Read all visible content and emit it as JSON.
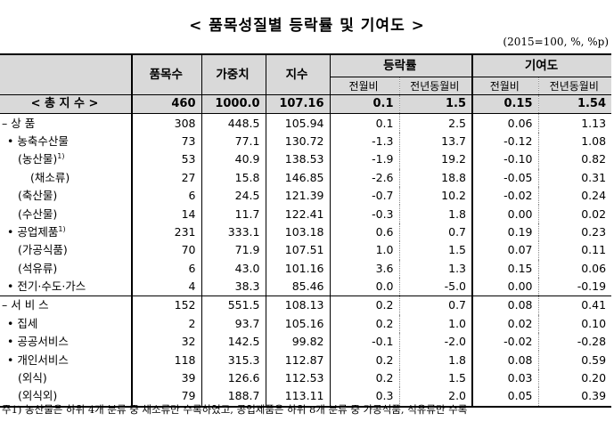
{
  "title": "< 품목성질별 등락률 및 기여도 >",
  "unit": "(2015=100, %, %p)",
  "header": {
    "items": "품목수",
    "weight": "가중치",
    "index": "지수",
    "change": "등락률",
    "contribution": "기여도",
    "mom": "전월비",
    "yoy": "전년동월비"
  },
  "rows": [
    {
      "label": "< 총 지 수 >",
      "sup": "",
      "items": "460",
      "weight": "1000.0",
      "index": "107.16",
      "ch_mom": "0.1",
      "ch_yoy": "1.5",
      "ct_mom": "0.15",
      "ct_yoy": "1.54"
    },
    {
      "label": "– 상    품",
      "sup": "",
      "items": "308",
      "weight": "448.5",
      "index": "105.94",
      "ch_mom": "0.1",
      "ch_yoy": "2.5",
      "ct_mom": "0.06",
      "ct_yoy": "1.13"
    },
    {
      "label": "• 농축수산물",
      "sup": "",
      "items": "73",
      "weight": "77.1",
      "index": "130.72",
      "ch_mom": "-1.3",
      "ch_yoy": "13.7",
      "ct_mom": "-0.12",
      "ct_yoy": "1.08"
    },
    {
      "label": "(농산물)",
      "sup": "1)",
      "items": "53",
      "weight": "40.9",
      "index": "138.53",
      "ch_mom": "-1.9",
      "ch_yoy": "19.2",
      "ct_mom": "-0.10",
      "ct_yoy": "0.82"
    },
    {
      "label": "(채소류)",
      "sup": "",
      "items": "27",
      "weight": "15.8",
      "index": "146.85",
      "ch_mom": "-2.6",
      "ch_yoy": "18.8",
      "ct_mom": "-0.05",
      "ct_yoy": "0.31"
    },
    {
      "label": "(축산물)",
      "sup": "",
      "items": "6",
      "weight": "24.5",
      "index": "121.39",
      "ch_mom": "-0.7",
      "ch_yoy": "10.2",
      "ct_mom": "-0.02",
      "ct_yoy": "0.24"
    },
    {
      "label": "(수산물)",
      "sup": "",
      "items": "14",
      "weight": "11.7",
      "index": "122.41",
      "ch_mom": "-0.3",
      "ch_yoy": "1.8",
      "ct_mom": "0.00",
      "ct_yoy": "0.02"
    },
    {
      "label": "• 공업제품",
      "sup": "1)",
      "items": "231",
      "weight": "333.1",
      "index": "103.18",
      "ch_mom": "0.6",
      "ch_yoy": "0.7",
      "ct_mom": "0.19",
      "ct_yoy": "0.23"
    },
    {
      "label": "(가공식품)",
      "sup": "",
      "items": "70",
      "weight": "71.9",
      "index": "107.51",
      "ch_mom": "1.0",
      "ch_yoy": "1.5",
      "ct_mom": "0.07",
      "ct_yoy": "0.11"
    },
    {
      "label": "(석유류)",
      "sup": "",
      "items": "6",
      "weight": "43.0",
      "index": "101.16",
      "ch_mom": "3.6",
      "ch_yoy": "1.3",
      "ct_mom": "0.15",
      "ct_yoy": "0.06"
    },
    {
      "label": "• 전기·수도·가스",
      "sup": "",
      "items": "4",
      "weight": "38.3",
      "index": "85.46",
      "ch_mom": "0.0",
      "ch_yoy": "-5.0",
      "ct_mom": "0.00",
      "ct_yoy": "-0.19"
    },
    {
      "label": "– 서  비  스",
      "sup": "",
      "items": "152",
      "weight": "551.5",
      "index": "108.13",
      "ch_mom": "0.2",
      "ch_yoy": "0.7",
      "ct_mom": "0.08",
      "ct_yoy": "0.41"
    },
    {
      "label": "• 집세",
      "sup": "",
      "items": "2",
      "weight": "93.7",
      "index": "105.16",
      "ch_mom": "0.2",
      "ch_yoy": "1.0",
      "ct_mom": "0.02",
      "ct_yoy": "0.10"
    },
    {
      "label": "• 공공서비스",
      "sup": "",
      "items": "32",
      "weight": "142.5",
      "index": "99.82",
      "ch_mom": "-0.1",
      "ch_yoy": "-2.0",
      "ct_mom": "-0.02",
      "ct_yoy": "-0.28"
    },
    {
      "label": "• 개인서비스",
      "sup": "",
      "items": "118",
      "weight": "315.3",
      "index": "112.87",
      "ch_mom": "0.2",
      "ch_yoy": "1.8",
      "ct_mom": "0.08",
      "ct_yoy": "0.59"
    },
    {
      "label": "(외식)",
      "sup": "",
      "items": "39",
      "weight": "126.6",
      "index": "112.53",
      "ch_mom": "0.2",
      "ch_yoy": "1.5",
      "ct_mom": "0.03",
      "ct_yoy": "0.20"
    },
    {
      "label": "(외식외)",
      "sup": "",
      "items": "79",
      "weight": "188.7",
      "index": "113.11",
      "ch_mom": "0.3",
      "ch_yoy": "2.0",
      "ct_mom": "0.05",
      "ct_yoy": "0.39"
    }
  ],
  "footnote": "주1) 농산물은 하위 4개 분류 중 채소류만 수록하였고, 공업제품은 하위 8개 분류 중 가공식품, 석유류만 수록"
}
